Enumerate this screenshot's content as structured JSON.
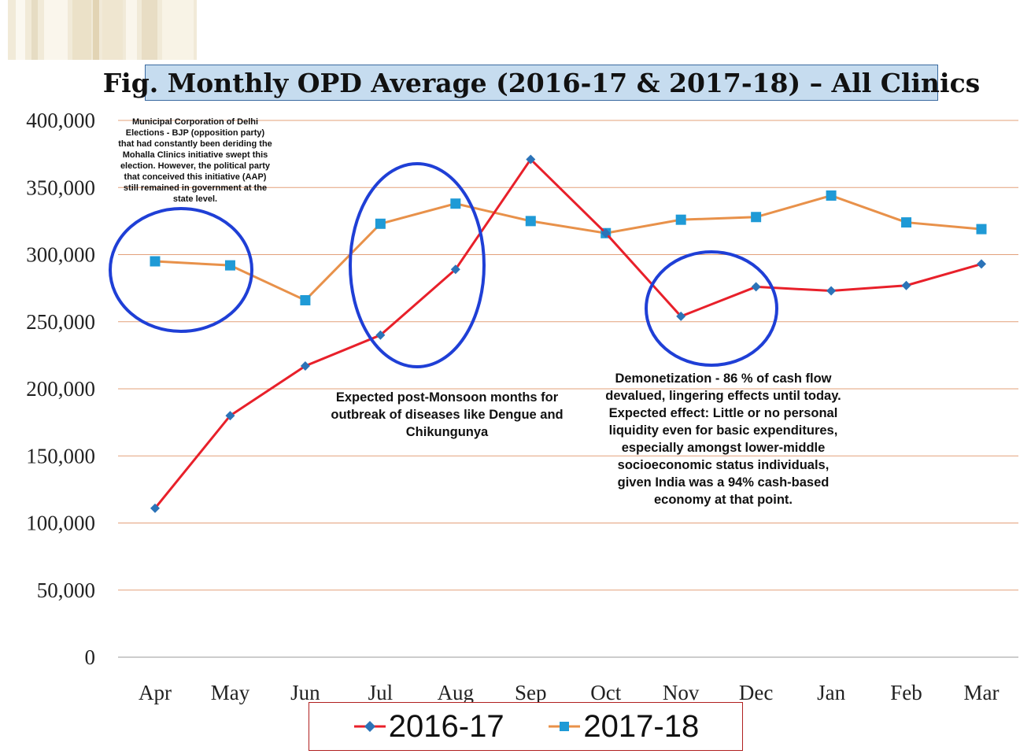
{
  "title": "Fig. Monthly OPD Average (2016-17 & 2017-18) – All Clinics",
  "colors": {
    "series_2016": "#e8202a",
    "series_2016_marker": "#2b73b8",
    "series_2017": "#e8914a",
    "series_2017_marker": "#1f9ad6",
    "gridline": "#e3a07a",
    "circle": "#1f3fd6",
    "title_bg": "#c6dcef"
  },
  "annotations": {
    "mcd": "Municipal Corporation of Delhi Elections - BJP (opposition party) that had constantly been deriding the Mohalla Clinics initiative swept this election. However, the political party that conceived this initiative (AAP) still remained in government at the state level.",
    "monsoon": "Expected post-Monsoon months for outbreak of diseases like Dengue and Chikungunya",
    "demonetization": "Demonetization - 86 % of cash flow devalued, lingering effects until today. Expected effect: Little or no personal liquidity even for basic expenditures, especially amongst lower-middle socioeconomic status individuals, given India was a 94% cash-based economy at that point."
  },
  "chart_data": {
    "type": "line",
    "title": "Fig. Monthly OPD Average (2016-17 & 2017-18) – All Clinics",
    "categories": [
      "Apr",
      "May",
      "Jun",
      "Jul",
      "Aug",
      "Sep",
      "Oct",
      "Nov",
      "Dec",
      "Jan",
      "Feb",
      "Mar"
    ],
    "ylim": [
      0,
      400000
    ],
    "yticks": [
      0,
      50000,
      100000,
      150000,
      200000,
      250000,
      300000,
      350000,
      400000
    ],
    "ytick_labels": [
      "0",
      "50,000",
      "100,000",
      "150,000",
      "200,000",
      "250,000",
      "300,000",
      "350,000",
      "400,000"
    ],
    "grid": true,
    "legend_position": "bottom",
    "series": [
      {
        "name": "2016-17",
        "marker": "diamond",
        "values": [
          111000,
          180000,
          217000,
          240000,
          289000,
          371000,
          316000,
          254000,
          276000,
          273000,
          277000,
          293000
        ]
      },
      {
        "name": "2017-18",
        "marker": "square",
        "values": [
          295000,
          292000,
          266000,
          323000,
          338000,
          325000,
          316000,
          326000,
          328000,
          344000,
          324000,
          319000
        ]
      }
    ]
  }
}
